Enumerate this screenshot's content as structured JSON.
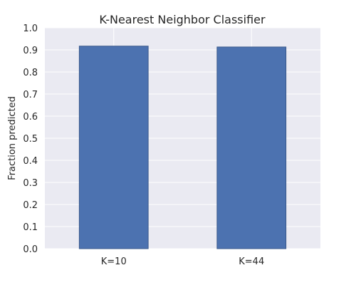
{
  "chart_data": {
    "type": "bar",
    "title": "K-Nearest Neighbor Classifier",
    "xlabel": "",
    "ylabel": "Fraction predicted",
    "categories": [
      "K=10",
      "K=44"
    ],
    "values": [
      0.917,
      0.913
    ],
    "ylim": [
      0,
      1.0
    ],
    "yticks": [
      "0.0",
      "0.1",
      "0.2",
      "0.3",
      "0.4",
      "0.5",
      "0.6",
      "0.7",
      "0.8",
      "0.9",
      "1.0"
    ],
    "grid": true,
    "legend": "none",
    "colors": {
      "bar": "#4c72b0",
      "bar_edge": "#3a5a8c",
      "plot_bg": "#eaeaf2",
      "grid": "#ffffff"
    }
  }
}
